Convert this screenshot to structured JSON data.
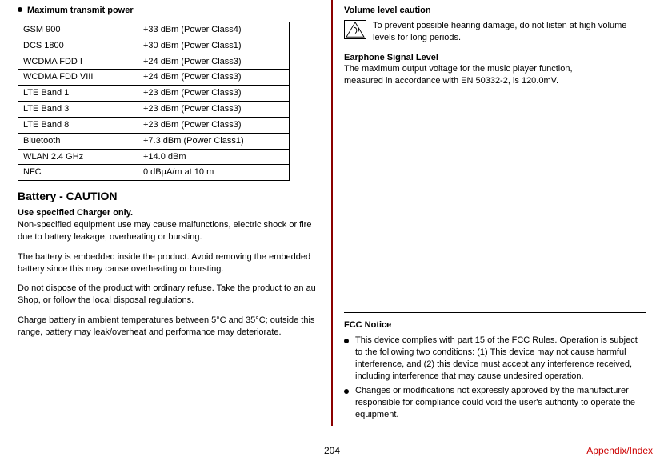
{
  "left": {
    "power_heading": "Maximum transmit power",
    "power_rows": [
      [
        "GSM 900",
        "+33 dBm (Power Class4)"
      ],
      [
        "DCS 1800",
        "+30 dBm (Power Class1)"
      ],
      [
        "WCDMA FDD I",
        "+24 dBm (Power Class3)"
      ],
      [
        "WCDMA FDD VIII",
        "+24 dBm (Power Class3)"
      ],
      [
        "LTE Band 1",
        "+23 dBm (Power Class3)"
      ],
      [
        "LTE Band 3",
        "+23 dBm (Power Class3)"
      ],
      [
        "LTE Band 8",
        "+23 dBm (Power Class3)"
      ],
      [
        "Bluetooth",
        "+7.3 dBm (Power Class1)"
      ],
      [
        "WLAN 2.4 GHz",
        "+14.0 dBm"
      ],
      [
        "NFC",
        "0 dBµA/m at 10 m"
      ]
    ],
    "battery_heading": "Battery - CAUTION",
    "charger_bold": "Use specified Charger only.",
    "charger_text": "Non-specified equipment use may cause malfunctions, electric shock or fire due to battery leakage, overheating or bursting.",
    "embedded_text": "The battery is embedded inside the product. Avoid removing the embedded battery since this may cause overheating or bursting.",
    "dispose_text": "Do not dispose of the product with ordinary refuse. Take the product to an au Shop, or follow the local disposal regulations.",
    "charge_text": "Charge battery in ambient temperatures between 5°C and 35°C; outside this range, battery may leak/overheat and performance may deteriorate."
  },
  "right": {
    "volume_heading": "Volume level caution",
    "volume_text": "To prevent possible hearing damage, do not listen at high volume levels for long periods.",
    "earphone_heading": "Earphone Signal Level",
    "earphone_text": "The maximum output voltage for the music player function, measured in accordance with EN 50332-2, is 120.0mV.",
    "fcc_heading": "FCC Notice",
    "fcc_items": [
      "This device complies with part 15 of the FCC Rules. Operation is subject to the following two conditions: (1) This device may not cause harmful interference, and (2) this device must accept any interference received, including interference that may cause undesired operation.",
      "Changes or modifications not expressly approved by the manufacturer responsible for compliance could void the user's authority to operate the equipment."
    ]
  },
  "footer": {
    "page": "204",
    "appendix": "Appendix/Index"
  }
}
